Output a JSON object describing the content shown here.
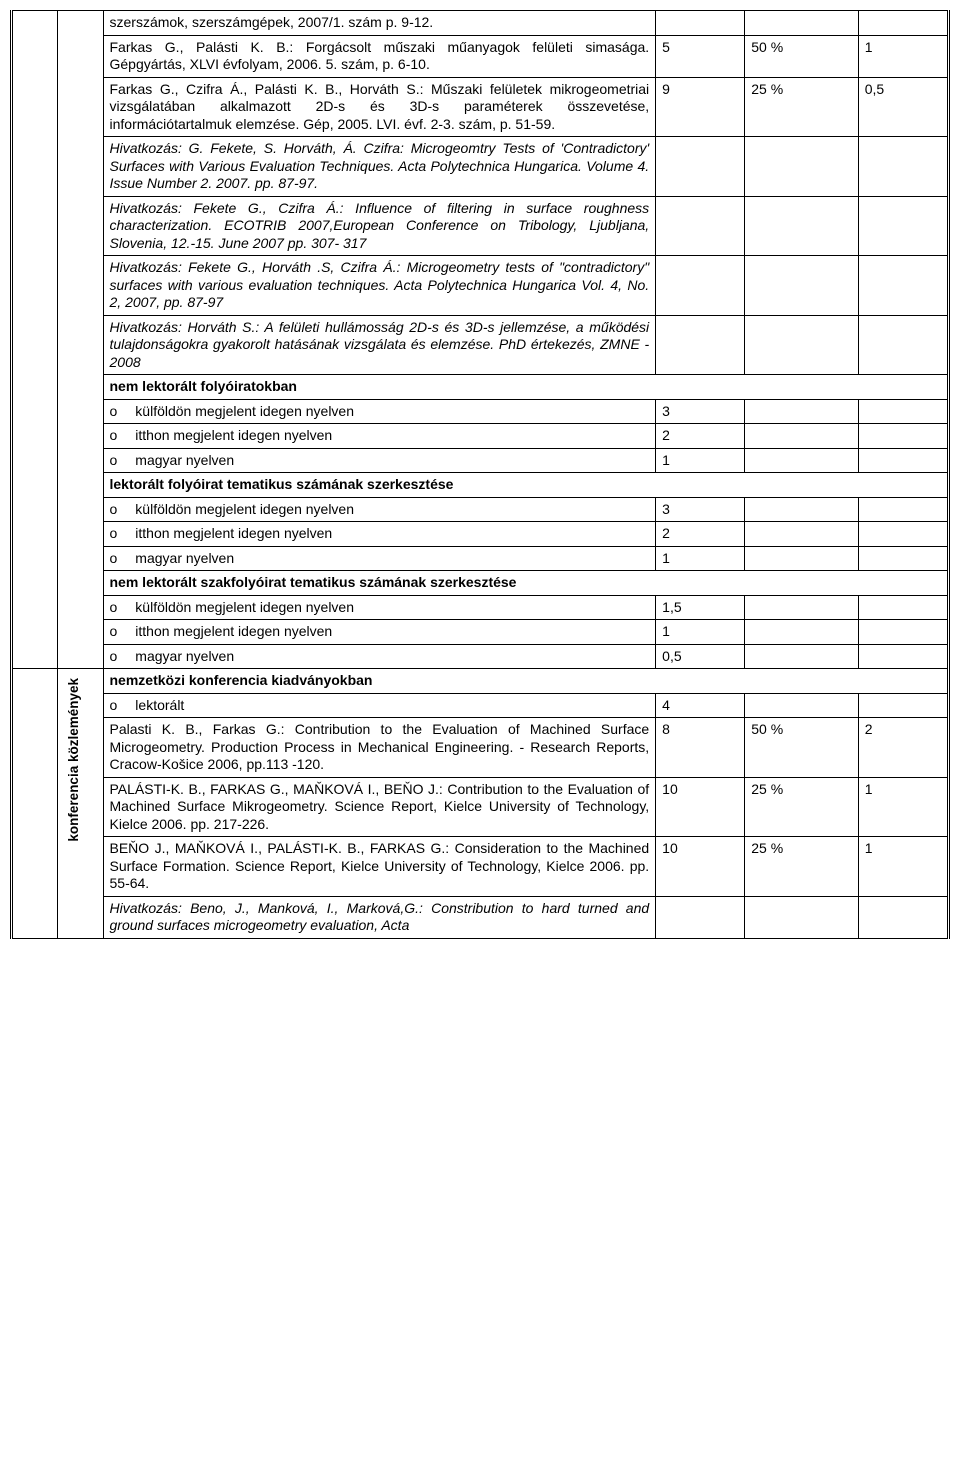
{
  "rows": [
    {
      "text": "szerszámok, szerszámgépek, 2007/1. szám p. 9-12.",
      "c1": "",
      "c2": "",
      "c3": ""
    },
    {
      "text": "Farkas G., Palásti K. B.: Forgácsolt műszaki műanyagok felületi simasága. Gépgyártás, XLVI évfolyam, 2006. 5. szám, p. 6-10.",
      "c1": "5",
      "c2": "50 %",
      "c3": "1"
    },
    {
      "text": "Farkas G., Czifra Á., Palásti K. B., Horváth S.: Műszaki felületek mikrogeometriai vizsgálatában alkalmazott 2D-s és 3D-s paraméterek összevetése, információtartalmuk elemzése. Gép, 2005. LVI. évf. 2-3. szám, p. 51-59.",
      "c1": "9",
      "c2": "25 %",
      "c3": "0,5"
    },
    {
      "text": "Hivatkozás: G. Fekete, S. Horváth, Á. Czifra: Microgeomtry Tests of 'Contradictory' Surfaces with Various Evaluation Techniques. Acta Polytechnica Hungarica. Volume 4. Issue Number 2. 2007. pp. 87-97.",
      "italic": true,
      "c1": "",
      "c2": "",
      "c3": ""
    },
    {
      "text": "Hivatkozás: Fekete G., Czifra Á.: Influence of filtering in surface roughness characterization. ECOTRIB 2007,European Conference on Tribology, Ljubljana, Slovenia, 12.-15. June 2007 pp. 307- 317",
      "italic": true,
      "c1": "",
      "c2": "",
      "c3": ""
    },
    {
      "text": "Hivatkozás: Fekete G., Horváth .S, Czifra Á.: Microgeometry tests of \"contradictory\" surfaces with various evaluation techniques. Acta Polytechnica Hungarica Vol. 4, No. 2, 2007, pp. 87-97",
      "italic": true,
      "c1": "",
      "c2": "",
      "c3": ""
    },
    {
      "text": "Hivatkozás: Horváth S.: A felületi hullámosság 2D-s és 3D-s jellemzése, a működési tulajdonságokra gyakorolt hatásának vizsgálata és elemzése. PhD értekezés, ZMNE - 2008",
      "italic": true,
      "c1": "",
      "c2": "",
      "c3": ""
    }
  ],
  "section1": "nem lektorált folyóiratokban",
  "bullets1": [
    {
      "label": "külföldön megjelent idegen nyelven",
      "v": "3"
    },
    {
      "label": "itthon megjelent idegen nyelven",
      "v": "2"
    },
    {
      "label": "magyar nyelven",
      "v": "1"
    }
  ],
  "section2": "lektorált folyóirat tematikus számának szerkesztése",
  "bullets2": [
    {
      "label": "külföldön megjelent idegen nyelven",
      "v": "3"
    },
    {
      "label": "itthon megjelent idegen nyelven",
      "v": "2"
    },
    {
      "label": "magyar nyelven",
      "v": "1"
    }
  ],
  "section3": "nem lektorált szakfolyóirat tematikus számának szerkesztése",
  "bullets3": [
    {
      "label": "külföldön megjelent idegen nyelven",
      "v": "1,5"
    },
    {
      "label": "itthon megjelent idegen nyelven",
      "v": "1"
    },
    {
      "label": "magyar nyelven",
      "v": "0,5"
    }
  ],
  "sideLabel": "konferencia közlemények",
  "section4": "nemzetközi konferencia kiadványokban",
  "bullets4": [
    {
      "label": "lektorált",
      "v": "4"
    }
  ],
  "rows2": [
    {
      "text": "Palasti K. B., Farkas G.: Contribution to the Evaluation of Machined Surface Microgeometry. Production Process in Mechanical Engineering. - Research Reports, Cracow-Košice 2006, pp.113 -120.",
      "c1": "8",
      "c2": "50 %",
      "c3": "2"
    },
    {
      "text": "PALÁSTI-K. B., FARKAS G., MAŇKOVÁ I., BEŇO J.: Contribution to the Evaluation of Machined Surface Mikrogeometry. Science Report, Kielce University of Technology, Kielce 2006. pp. 217-226.",
      "c1": "10",
      "c2": "25 %",
      "c3": "1"
    },
    {
      "text": "BEŇO J., MAŇKOVÁ I., PALÁSTI-K. B., FARKAS G.: Consideration to the Machined Surface Formation. Science Report, Kielce University of Technology, Kielce 2006. pp. 55-64.",
      "c1": "10",
      "c2": "25 %",
      "c3": "1"
    },
    {
      "text": "Hivatkozás: Beno, J., Manková, I., Marková,G.: Constribution to hard turned and ground surfaces microgeometry evaluation, Acta",
      "italic": true,
      "c1": "",
      "c2": "",
      "c3": ""
    }
  ]
}
